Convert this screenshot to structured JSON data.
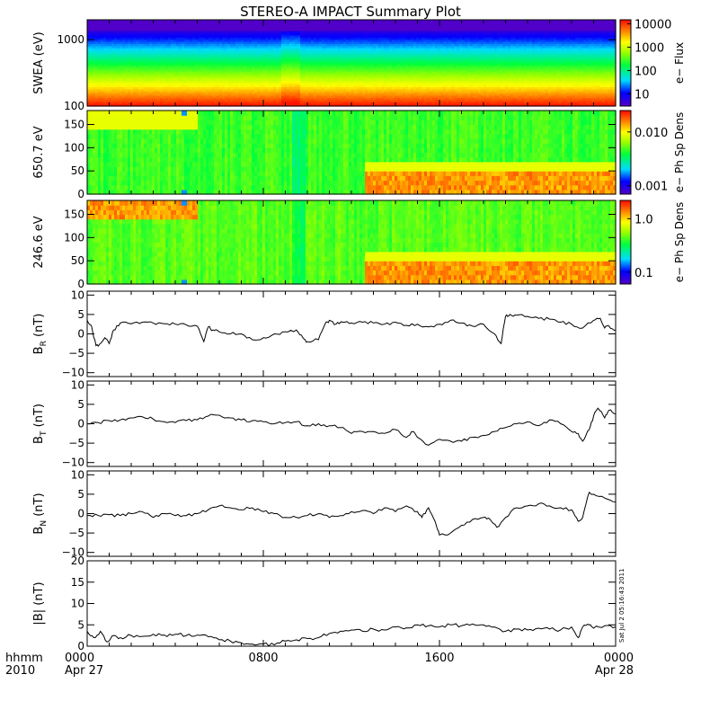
{
  "title": "STEREO-A IMPACT Summary Plot",
  "timestamp": "Sat Jul  2 05:16:43 2011",
  "time_axis": {
    "label_top": "hhmm",
    "label_bottom": "2010",
    "ticks": [
      {
        "hours": 0,
        "label": "0000",
        "date": "Apr 27"
      },
      {
        "hours": 8,
        "label": "0800",
        "date": ""
      },
      {
        "hours": 16,
        "label": "1600",
        "date": ""
      },
      {
        "hours": 24,
        "label": "0000",
        "date": "Apr 28"
      }
    ],
    "range_hours": [
      0,
      24
    ]
  },
  "chart_data": [
    {
      "type": "heatmap",
      "name": "swea",
      "ylabel": "SWEA (eV)",
      "yscale": "log",
      "ylim": [
        100,
        2000
      ],
      "yticks": [
        {
          "v": 100,
          "label": "100"
        },
        {
          "v": 1000,
          "label": "1000"
        }
      ],
      "colorbar": {
        "label": "e− Flux",
        "scale": "log",
        "range": [
          3,
          15000
        ],
        "ticks": [
          {
            "v": 10,
            "label": "10"
          },
          {
            "v": 100,
            "label": "100"
          },
          {
            "v": 1000,
            "label": "1000"
          },
          {
            "v": 10000,
            "label": "10000"
          }
        ]
      },
      "description_colors": [
        "#ff3000",
        "#ff8000",
        "#ffff00",
        "#00ff00",
        "#00ffff",
        "#0000ff"
      ]
    },
    {
      "type": "heatmap",
      "name": "pad650",
      "ylabel": "650.7 eV",
      "yscale": "linear",
      "ylim": [
        0,
        180
      ],
      "yticks": [
        {
          "v": 0,
          "label": "0"
        },
        {
          "v": 50,
          "label": "50"
        },
        {
          "v": 100,
          "label": "100"
        },
        {
          "v": 150,
          "label": "150"
        }
      ],
      "colorbar": {
        "label": "e− Ph Sp Dens",
        "scale": "log",
        "range": [
          0.0007,
          0.025
        ],
        "ticks": [
          {
            "v": 0.001,
            "label": "0.001"
          },
          {
            "v": 0.01,
            "label": "0.010"
          }
        ]
      }
    },
    {
      "type": "heatmap",
      "name": "pad246",
      "ylabel": "246.6 eV",
      "yscale": "linear",
      "ylim": [
        0,
        180
      ],
      "yticks": [
        {
          "v": 0,
          "label": "0"
        },
        {
          "v": 50,
          "label": "50"
        },
        {
          "v": 100,
          "label": "100"
        },
        {
          "v": 150,
          "label": "150"
        }
      ],
      "colorbar": {
        "label": "e− Ph Sp Dens",
        "scale": "log",
        "range": [
          0.06,
          2.2
        ],
        "ticks": [
          {
            "v": 0.1,
            "label": "0.1"
          },
          {
            "v": 1.0,
            "label": "1.0"
          }
        ]
      }
    },
    {
      "type": "line",
      "name": "br",
      "ylabel": "B",
      "ylabel_sub": "R",
      "ylabel_unit": " (nT)",
      "ylim": [
        -11,
        11
      ],
      "yticks": [
        {
          "v": -10,
          "label": "−10"
        },
        {
          "v": -5,
          "label": "−5"
        },
        {
          "v": 0,
          "label": "0"
        },
        {
          "v": 5,
          "label": "5"
        },
        {
          "v": 10,
          "label": "10"
        }
      ],
      "x": [
        0,
        0.2,
        0.4,
        0.6,
        0.8,
        1.0,
        1.2,
        1.5,
        2.0,
        2.5,
        3.0,
        3.5,
        4.0,
        4.5,
        5.0,
        5.3,
        5.5,
        5.7,
        6.0,
        6.5,
        7.0,
        7.5,
        8.0,
        8.5,
        9.0,
        9.5,
        9.8,
        10.0,
        10.5,
        10.8,
        11.0,
        11.3,
        11.6,
        12.0,
        12.5,
        13.0,
        13.5,
        14.0,
        14.5,
        15.0,
        15.5,
        16.0,
        16.5,
        17.0,
        17.5,
        18.0,
        18.5,
        18.8,
        19.0,
        19.2,
        19.5,
        20.0,
        20.5,
        21.0,
        21.5,
        22.0,
        22.5,
        23.0,
        23.3,
        23.5,
        23.7,
        24.0
      ],
      "y": [
        3.5,
        2.0,
        -3.0,
        -2.5,
        -1.0,
        -2.5,
        1.0,
        2.8,
        2.6,
        3.0,
        2.8,
        2.6,
        2.5,
        2.3,
        2.0,
        -2.0,
        1.8,
        1.0,
        0.5,
        0.0,
        0.0,
        -1.5,
        -1.0,
        0.0,
        0.5,
        1.0,
        -1.0,
        -2.0,
        -1.5,
        2.5,
        3.5,
        2.5,
        3.0,
        2.8,
        3.0,
        2.8,
        2.5,
        3.0,
        2.2,
        2.5,
        1.8,
        2.5,
        3.5,
        2.8,
        2.0,
        2.5,
        0.0,
        -2.5,
        4.5,
        5.0,
        4.8,
        4.5,
        4.0,
        3.8,
        3.0,
        2.5,
        1.5,
        3.5,
        4.0,
        1.5,
        2.0,
        1.0
      ]
    },
    {
      "type": "line",
      "name": "bt",
      "ylabel": "B",
      "ylabel_sub": "T",
      "ylabel_unit": " (nT)",
      "ylim": [
        -11,
        11
      ],
      "yticks": [
        {
          "v": -10,
          "label": "−10"
        },
        {
          "v": -5,
          "label": "−5"
        },
        {
          "v": 0,
          "label": "0"
        },
        {
          "v": 5,
          "label": "5"
        },
        {
          "v": 10,
          "label": "10"
        }
      ],
      "x": [
        0,
        0.5,
        1.0,
        1.5,
        2.0,
        2.5,
        3.0,
        3.5,
        4.0,
        4.5,
        5.0,
        5.5,
        6.0,
        6.5,
        7.0,
        7.5,
        8.0,
        8.5,
        9.0,
        9.5,
        10.0,
        10.5,
        11.0,
        11.5,
        12.0,
        12.5,
        13.0,
        13.5,
        14.0,
        14.5,
        14.8,
        15.0,
        15.5,
        16.0,
        16.5,
        17.0,
        17.5,
        18.0,
        18.5,
        19.0,
        19.5,
        20.0,
        20.5,
        21.0,
        21.5,
        22.0,
        22.3,
        22.5,
        22.8,
        23.0,
        23.2,
        23.5,
        23.7,
        24.0
      ],
      "y": [
        0,
        0.3,
        0.8,
        1.0,
        1.5,
        1.8,
        1.2,
        0.5,
        0.3,
        0.8,
        1.0,
        2.0,
        2.2,
        1.5,
        1.0,
        0.8,
        0.5,
        0.0,
        0.3,
        0.5,
        -0.5,
        0.0,
        -0.5,
        -1.0,
        -2.5,
        -2.0,
        -2.0,
        -2.5,
        -1.5,
        -3.5,
        -2.0,
        -3.5,
        -5.5,
        -4.0,
        -4.5,
        -4.5,
        -3.5,
        -3.0,
        -2.0,
        -1.0,
        0.0,
        0.5,
        -0.5,
        1.0,
        0.0,
        -2.0,
        -2.5,
        -4.5,
        -1.5,
        2.0,
        4.0,
        1.5,
        3.5,
        2.5
      ]
    },
    {
      "type": "line",
      "name": "bn",
      "ylabel": "B",
      "ylabel_sub": "N",
      "ylabel_unit": " (nT)",
      "ylim": [
        -11,
        11
      ],
      "yticks": [
        {
          "v": -10,
          "label": "−10"
        },
        {
          "v": -5,
          "label": "−5"
        },
        {
          "v": 0,
          "label": "0"
        },
        {
          "v": 5,
          "label": "5"
        },
        {
          "v": 10,
          "label": "10"
        }
      ],
      "x": [
        0,
        0.5,
        1.0,
        1.5,
        2.0,
        2.5,
        3.0,
        3.5,
        4.0,
        4.5,
        5.0,
        5.5,
        6.0,
        6.5,
        7.0,
        7.5,
        8.0,
        8.5,
        9.0,
        9.5,
        10.0,
        10.5,
        11.0,
        11.5,
        12.0,
        12.5,
        13.0,
        13.5,
        14.0,
        14.5,
        15.0,
        15.2,
        15.5,
        15.8,
        16.0,
        16.5,
        17.0,
        17.5,
        18.0,
        18.3,
        18.6,
        19.0,
        19.5,
        20.0,
        20.5,
        21.0,
        21.5,
        22.0,
        22.3,
        22.5,
        22.8,
        23.0,
        23.5,
        24.0
      ],
      "y": [
        -0.5,
        -0.5,
        -0.3,
        -0.5,
        0.0,
        0.5,
        -1.0,
        0.0,
        -0.5,
        -0.5,
        0.0,
        1.0,
        2.0,
        1.5,
        1.0,
        1.5,
        0.5,
        0.0,
        -1.0,
        -1.0,
        -0.5,
        0.0,
        -1.0,
        -0.5,
        0.5,
        0.8,
        0.0,
        1.5,
        0.5,
        2.0,
        0.5,
        -1.0,
        1.5,
        -2.0,
        -5.5,
        -5.0,
        -3.0,
        -1.5,
        -1.0,
        -1.5,
        -3.5,
        -1.0,
        1.5,
        2.0,
        2.5,
        2.0,
        1.5,
        1.0,
        -2.0,
        -1.0,
        5.5,
        5.0,
        4.0,
        3.0
      ]
    },
    {
      "type": "line",
      "name": "bmag",
      "ylabel": "|B| (nT)",
      "ylim": [
        0,
        20
      ],
      "yticks": [
        {
          "v": 0,
          "label": "0"
        },
        {
          "v": 5,
          "label": "5"
        },
        {
          "v": 10,
          "label": "10"
        },
        {
          "v": 15,
          "label": "15"
        },
        {
          "v": 20,
          "label": "20"
        }
      ],
      "x": [
        0,
        0.3,
        0.6,
        0.9,
        1.2,
        1.5,
        2.0,
        2.5,
        3.0,
        3.5,
        4.0,
        4.5,
        5.0,
        5.5,
        6.0,
        6.5,
        7.0,
        7.5,
        8.0,
        8.5,
        9.0,
        9.5,
        10.0,
        10.5,
        11.0,
        11.5,
        12.0,
        12.5,
        13.0,
        13.5,
        14.0,
        14.5,
        15.0,
        15.5,
        16.0,
        16.5,
        17.0,
        17.5,
        18.0,
        18.5,
        19.0,
        19.5,
        20.0,
        20.5,
        21.0,
        21.5,
        22.0,
        22.3,
        22.5,
        22.8,
        23.0,
        23.5,
        24.0
      ],
      "y": [
        3.5,
        2.0,
        3.5,
        1.0,
        2.5,
        2.0,
        2.5,
        2.3,
        2.8,
        2.6,
        2.8,
        2.5,
        2.6,
        2.2,
        1.5,
        1.2,
        0.8,
        0.5,
        0.5,
        0.3,
        1.2,
        1.5,
        1.8,
        2.0,
        3.0,
        3.5,
        3.8,
        3.5,
        4.0,
        3.8,
        4.5,
        4.3,
        5.0,
        4.8,
        4.5,
        5.0,
        4.8,
        5.2,
        5.0,
        4.5,
        3.5,
        4.0,
        3.8,
        4.2,
        4.0,
        3.8,
        4.5,
        2.0,
        4.5,
        5.0,
        4.2,
        4.8,
        4.5
      ]
    }
  ]
}
